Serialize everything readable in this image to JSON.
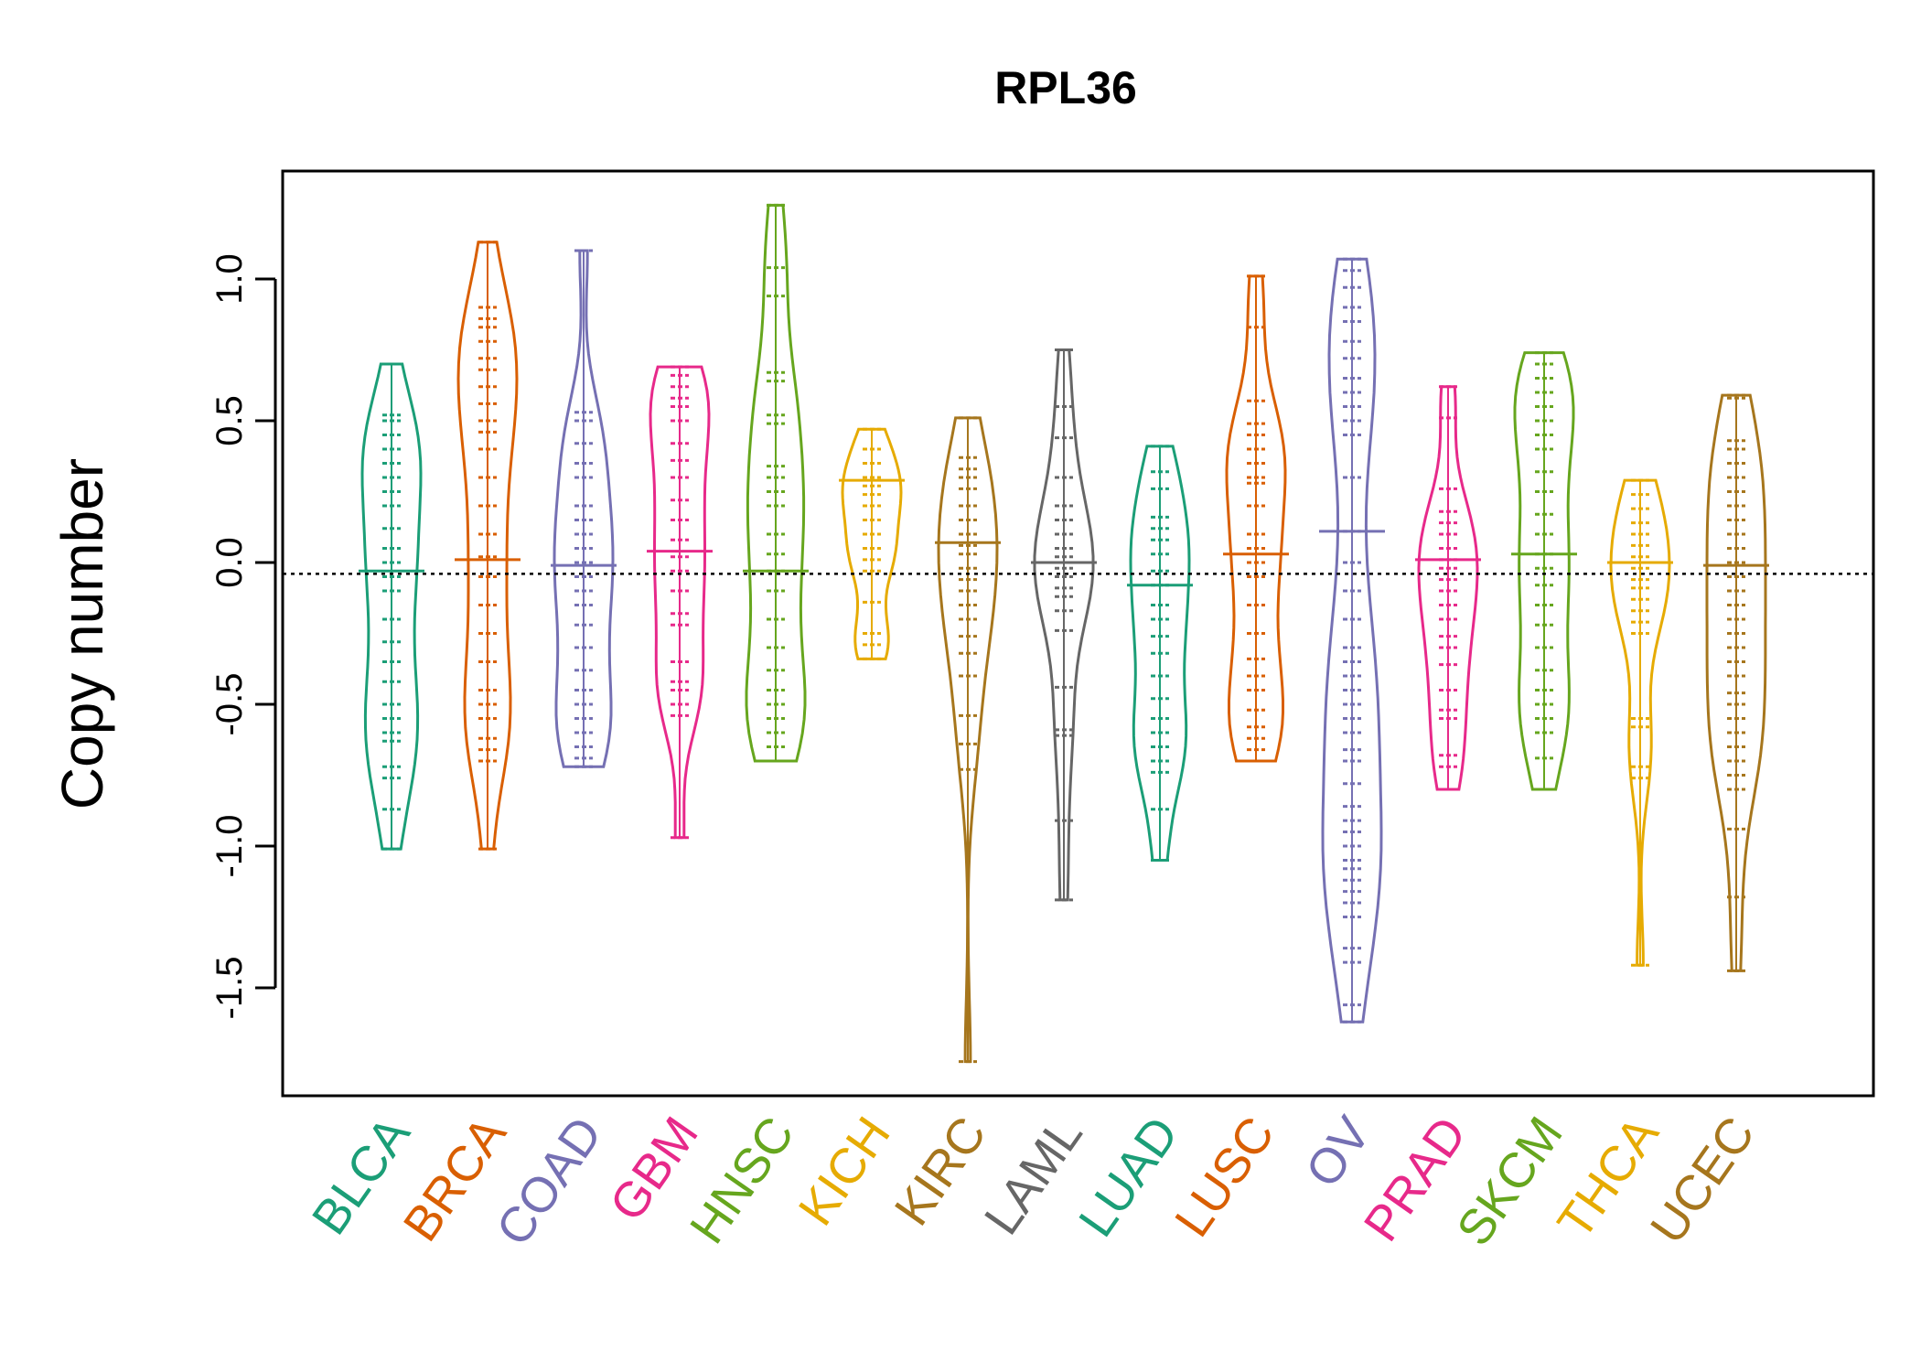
{
  "chart_data": {
    "type": "beanplot",
    "title": "RPL36",
    "ylabel": "Copy number",
    "xlabel": "",
    "ylim": [
      -1.85,
      1.4
    ],
    "yticks": [
      1.0,
      0.5,
      0.0,
      -0.5,
      -1.0,
      -1.5
    ],
    "ytick_labels": [
      "1.0",
      "0.5",
      "0.0",
      "-0.5",
      "-1.0",
      "-1.5"
    ],
    "reference_line": -0.04,
    "categories": [
      "BLCA",
      "BRCA",
      "COAD",
      "GBM",
      "HNSC",
      "KICH",
      "KIRC",
      "LAML",
      "LUAD",
      "LUSC",
      "OV",
      "PRAD",
      "SKCM",
      "THCA",
      "UCEC"
    ],
    "colors": [
      "#1b9e77",
      "#d95f02",
      "#7570b3",
      "#e7298a",
      "#66a61e",
      "#e6ab02",
      "#a6761d",
      "#666666",
      "#1b9e77",
      "#d95f02",
      "#7570b3",
      "#e7298a",
      "#66a61e",
      "#e6ab02",
      "#a6761d"
    ],
    "series": [
      {
        "category": "BLCA",
        "min": -1.01,
        "max": 0.7,
        "mean": -0.03,
        "points": [
          0.7,
          0.52,
          0.5,
          0.45,
          0.4,
          0.35,
          0.3,
          0.25,
          0.2,
          0.12,
          0.05,
          0.0,
          -0.05,
          -0.1,
          -0.2,
          -0.28,
          -0.35,
          -0.42,
          -0.5,
          -0.55,
          -0.6,
          -0.63,
          -0.72,
          -0.76,
          -0.87,
          -1.01
        ]
      },
      {
        "category": "BRCA",
        "min": -1.01,
        "max": 1.13,
        "mean": 0.01,
        "points": [
          1.13,
          0.9,
          0.86,
          0.83,
          0.78,
          0.72,
          0.68,
          0.62,
          0.56,
          0.5,
          0.46,
          0.4,
          0.3,
          0.2,
          0.1,
          0.02,
          -0.05,
          -0.15,
          -0.25,
          -0.35,
          -0.45,
          -0.5,
          -0.55,
          -0.62,
          -0.66,
          -0.7,
          -1.01
        ]
      },
      {
        "category": "COAD",
        "min": -0.72,
        "max": 1.1,
        "mean": -0.01,
        "points": [
          1.1,
          0.53,
          0.5,
          0.42,
          0.35,
          0.3,
          0.2,
          0.15,
          0.1,
          0.05,
          0.0,
          -0.05,
          -0.1,
          -0.15,
          -0.22,
          -0.3,
          -0.38,
          -0.45,
          -0.5,
          -0.55,
          -0.6,
          -0.65,
          -0.69,
          -0.72
        ]
      },
      {
        "category": "GBM",
        "min": -0.97,
        "max": 0.69,
        "mean": 0.04,
        "points": [
          0.69,
          0.66,
          0.62,
          0.58,
          0.55,
          0.5,
          0.42,
          0.36,
          0.3,
          0.22,
          0.15,
          0.08,
          0.02,
          -0.03,
          -0.1,
          -0.18,
          -0.22,
          -0.35,
          -0.42,
          -0.45,
          -0.5,
          -0.54,
          -0.97
        ]
      },
      {
        "category": "HNSC",
        "min": -0.7,
        "max": 1.26,
        "mean": -0.03,
        "points": [
          1.26,
          1.04,
          0.94,
          0.67,
          0.64,
          0.52,
          0.49,
          0.34,
          0.3,
          0.25,
          0.2,
          0.1,
          0.03,
          -0.03,
          -0.1,
          -0.2,
          -0.3,
          -0.38,
          -0.45,
          -0.5,
          -0.55,
          -0.6,
          -0.65,
          -0.7
        ]
      },
      {
        "category": "KICH",
        "min": -0.34,
        "max": 0.47,
        "mean": 0.29,
        "points": [
          0.47,
          0.4,
          0.35,
          0.3,
          0.27,
          0.24,
          0.2,
          0.15,
          0.1,
          0.05,
          0.01,
          -0.03,
          -0.14,
          -0.25,
          -0.29,
          -0.34
        ]
      },
      {
        "category": "KIRC",
        "min": -1.76,
        "max": 0.51,
        "mean": 0.07,
        "points": [
          0.51,
          0.37,
          0.33,
          0.3,
          0.26,
          0.2,
          0.15,
          0.1,
          0.06,
          0.03,
          -0.02,
          -0.06,
          -0.1,
          -0.15,
          -0.2,
          -0.26,
          -0.32,
          -0.4,
          -0.54,
          -0.64,
          -0.73,
          -1.76
        ]
      },
      {
        "category": "LAML",
        "min": -1.19,
        "max": 0.75,
        "mean": 0.0,
        "points": [
          0.75,
          0.55,
          0.44,
          0.3,
          0.2,
          0.15,
          0.1,
          0.05,
          0.02,
          0.0,
          -0.02,
          -0.05,
          -0.09,
          -0.12,
          -0.17,
          -0.24,
          -0.44,
          -0.59,
          -0.61,
          -0.91,
          -1.19
        ]
      },
      {
        "category": "LUAD",
        "min": -1.05,
        "max": 0.41,
        "mean": -0.08,
        "points": [
          0.41,
          0.32,
          0.26,
          0.16,
          0.12,
          0.08,
          0.03,
          -0.03,
          -0.08,
          -0.15,
          -0.2,
          -0.26,
          -0.32,
          -0.4,
          -0.48,
          -0.55,
          -0.6,
          -0.65,
          -0.7,
          -0.74,
          -0.87,
          -1.05
        ]
      },
      {
        "category": "LUSC",
        "min": -0.7,
        "max": 1.01,
        "mean": 0.03,
        "points": [
          1.01,
          0.83,
          0.57,
          0.49,
          0.45,
          0.4,
          0.35,
          0.3,
          0.28,
          0.2,
          0.1,
          0.05,
          0.0,
          -0.05,
          -0.15,
          -0.25,
          -0.34,
          -0.4,
          -0.45,
          -0.52,
          -0.58,
          -0.62,
          -0.66,
          -0.7
        ]
      },
      {
        "category": "OV",
        "min": -1.62,
        "max": 1.07,
        "mean": 0.11,
        "points": [
          1.07,
          1.03,
          0.97,
          0.9,
          0.85,
          0.78,
          0.72,
          0.65,
          0.6,
          0.55,
          0.5,
          0.45,
          0.3,
          0.11,
          0.0,
          -0.1,
          -0.2,
          -0.3,
          -0.35,
          -0.4,
          -0.45,
          -0.5,
          -0.55,
          -0.6,
          -0.66,
          -0.7,
          -0.78,
          -0.86,
          -0.91,
          -0.95,
          -1.0,
          -1.05,
          -1.08,
          -1.12,
          -1.16,
          -1.2,
          -1.25,
          -1.36,
          -1.41,
          -1.56,
          -1.62
        ]
      },
      {
        "category": "PRAD",
        "min": -0.8,
        "max": 0.62,
        "mean": 0.01,
        "points": [
          0.62,
          0.51,
          0.26,
          0.18,
          0.14,
          0.1,
          0.05,
          0.01,
          -0.02,
          -0.06,
          -0.1,
          -0.15,
          -0.2,
          -0.26,
          -0.3,
          -0.36,
          -0.45,
          -0.52,
          -0.55,
          -0.68,
          -0.72,
          -0.8
        ]
      },
      {
        "category": "SKCM",
        "min": -0.8,
        "max": 0.74,
        "mean": 0.03,
        "points": [
          0.74,
          0.7,
          0.65,
          0.6,
          0.55,
          0.5,
          0.45,
          0.4,
          0.32,
          0.25,
          0.17,
          0.1,
          0.03,
          -0.02,
          -0.08,
          -0.15,
          -0.22,
          -0.3,
          -0.38,
          -0.45,
          -0.5,
          -0.55,
          -0.6,
          -0.69,
          -0.8
        ]
      },
      {
        "category": "THCA",
        "min": -1.42,
        "max": 0.29,
        "mean": 0.0,
        "points": [
          0.29,
          0.24,
          0.19,
          0.14,
          0.1,
          0.06,
          0.02,
          -0.02,
          -0.06,
          -0.09,
          -0.13,
          -0.17,
          -0.21,
          -0.25,
          -0.55,
          -0.58,
          -0.72,
          -0.76,
          -1.42
        ]
      },
      {
        "category": "UCEC",
        "min": -1.44,
        "max": 0.59,
        "mean": -0.01,
        "points": [
          0.59,
          0.58,
          0.43,
          0.4,
          0.35,
          0.3,
          0.25,
          0.2,
          0.15,
          0.1,
          0.05,
          0.0,
          -0.05,
          -0.1,
          -0.15,
          -0.2,
          -0.25,
          -0.3,
          -0.35,
          -0.4,
          -0.46,
          -0.5,
          -0.55,
          -0.6,
          -0.65,
          -0.7,
          -0.75,
          -0.8,
          -0.94,
          -1.18,
          -1.44
        ]
      }
    ]
  }
}
